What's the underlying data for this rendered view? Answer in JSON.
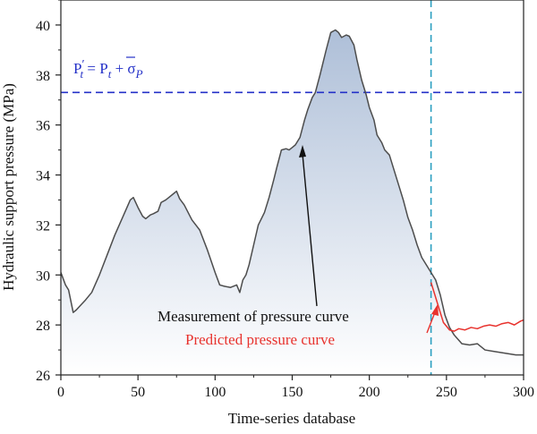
{
  "chart_data": {
    "type": "area",
    "xlabel": "Time-series database",
    "ylabel": "Hydraulic support pressure (MPa)",
    "xlim": [
      0,
      300
    ],
    "ylim": [
      26,
      41
    ],
    "x_ticks": [
      0,
      50,
      100,
      150,
      200,
      250,
      300
    ],
    "y_ticks": [
      26,
      28,
      30,
      32,
      34,
      36,
      38,
      40
    ],
    "grid": false,
    "series": [
      {
        "name": "Measurement of pressure curve",
        "color": "#4d4d4d",
        "x": [
          0,
          3,
          5,
          8,
          10,
          13,
          16,
          20,
          25,
          30,
          35,
          40,
          45,
          47,
          50,
          53,
          55,
          58,
          60,
          63,
          65,
          68,
          70,
          73,
          75,
          77,
          80,
          85,
          90,
          95,
          100,
          103,
          106,
          110,
          114,
          116,
          118,
          120,
          122,
          125,
          128,
          132,
          135,
          138,
          140,
          143,
          146,
          148,
          150,
          152,
          155,
          158,
          160,
          163,
          165,
          168,
          170,
          172,
          175,
          178,
          180,
          182,
          185,
          187,
          190,
          192,
          195,
          198,
          200,
          203,
          205,
          208,
          210,
          213,
          216,
          219,
          222,
          225,
          228,
          231,
          234,
          237,
          240,
          243,
          246,
          249,
          252,
          255,
          260,
          265,
          270,
          275,
          280,
          285,
          290,
          295,
          300
        ],
        "values": [
          30.1,
          29.6,
          29.4,
          28.5,
          28.6,
          28.8,
          29.0,
          29.3,
          30.0,
          30.8,
          31.6,
          32.3,
          33.0,
          33.1,
          32.7,
          32.35,
          32.25,
          32.4,
          32.45,
          32.55,
          32.9,
          33.0,
          33.1,
          33.25,
          33.35,
          33.05,
          32.8,
          32.2,
          31.8,
          31.0,
          30.1,
          29.6,
          29.55,
          29.5,
          29.6,
          29.3,
          29.8,
          30.0,
          30.4,
          31.2,
          32.0,
          32.5,
          33.1,
          33.8,
          34.3,
          35.0,
          35.05,
          35.0,
          35.1,
          35.2,
          35.5,
          36.2,
          36.6,
          37.1,
          37.3,
          38.0,
          38.5,
          39.0,
          39.7,
          39.8,
          39.7,
          39.5,
          39.6,
          39.55,
          39.2,
          38.6,
          37.8,
          37.2,
          36.7,
          36.2,
          35.6,
          35.3,
          35.0,
          34.8,
          34.2,
          33.6,
          33.0,
          32.3,
          31.8,
          31.2,
          30.7,
          30.4,
          30.1,
          29.8,
          29.2,
          28.4,
          27.9,
          27.6,
          27.25,
          27.2,
          27.25,
          27.0,
          26.95,
          26.9,
          26.85,
          26.8,
          26.8
        ]
      },
      {
        "name": "Predicted pressure curve",
        "color": "#e8322d",
        "x": [
          240,
          242,
          244,
          246,
          248,
          250,
          252,
          255,
          258,
          262,
          266,
          270,
          274,
          278,
          282,
          286,
          290,
          294,
          298,
          300
        ],
        "values": [
          29.7,
          29.3,
          28.9,
          28.5,
          28.1,
          27.95,
          27.8,
          27.75,
          27.85,
          27.8,
          27.9,
          27.85,
          27.95,
          28.0,
          27.95,
          28.05,
          28.1,
          28.0,
          28.15,
          28.2
        ]
      }
    ],
    "threshold_line": {
      "y": 37.3,
      "color": "#2431c8",
      "style": "dashed"
    },
    "vertical_line": {
      "x": 240,
      "color": "#2a9fc0",
      "style": "dashed"
    },
    "formula_parts": {
      "lhs": "P",
      "lhs_prime": "′",
      "sub_t": "t",
      "equals": " = ",
      "rhs": "P",
      "plus": " + σ",
      "sub_p": "P"
    },
    "annotations": [
      {
        "text": "Measurement of pressure curve",
        "color": "#111111"
      },
      {
        "text": "Predicted pressure curve",
        "color": "#e8322d"
      }
    ],
    "fill_gradient": {
      "top": "#aebfd8",
      "bottom": "#ffffff"
    }
  }
}
